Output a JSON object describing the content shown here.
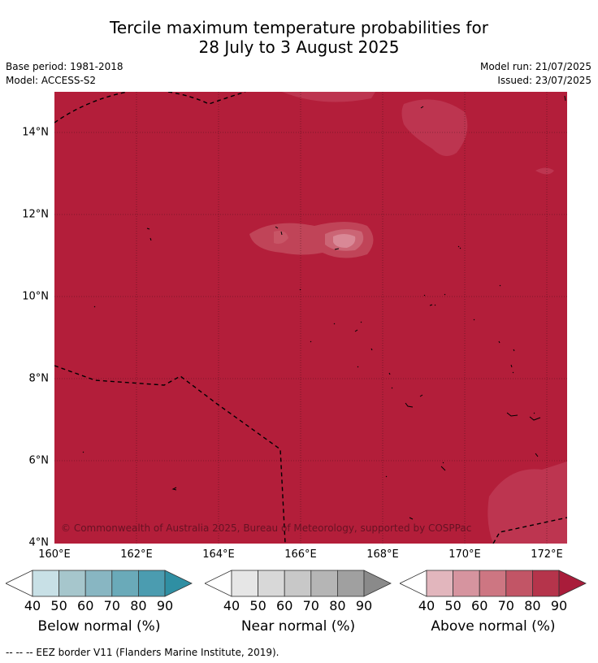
{
  "title_line1": "Tercile maximum temperature probabilities for",
  "title_line2": "28 July to 3 August 2025",
  "base_period": "Base period: 1981-2018",
  "model": "Model: ACCESS-S2",
  "model_run": "Model run: 21/07/2025",
  "issued": "Issued: 23/07/2025",
  "copyright": "© Commonwealth of Australia 2025, Bureau of Meteorology, supported by COSPPac",
  "map": {
    "lon_range": [
      160,
      172.5
    ],
    "lat_range": [
      4,
      15
    ],
    "lat_labels": [
      "4°N",
      "6°N",
      "8°N",
      "10°N",
      "12°N",
      "14°N"
    ],
    "lon_labels": [
      "160°E",
      "162°E",
      "164°E",
      "166°E",
      "168°E",
      "170°E",
      "172°E"
    ],
    "dominant_category": "Above normal",
    "dominant_range": "80-90",
    "fill_color": "#b31e3a"
  },
  "colorbars": [
    {
      "label": "Below normal (%)",
      "ticks": [
        "40",
        "50",
        "60",
        "70",
        "80",
        "90"
      ],
      "colors": [
        "#c8e0e6",
        "#a6c6cc",
        "#88b6c2",
        "#6aaab9",
        "#4b9cb0",
        "#2f8fa3"
      ]
    },
    {
      "label": "Near normal (%)",
      "ticks": [
        "40",
        "50",
        "60",
        "70",
        "80",
        "90"
      ],
      "colors": [
        "#e6e6e6",
        "#d8d8d8",
        "#c8c8c8",
        "#b5b5b5",
        "#a0a0a0",
        "#8a8a8a"
      ]
    },
    {
      "label": "Above normal (%)",
      "ticks": [
        "40",
        "50",
        "60",
        "70",
        "80",
        "90"
      ],
      "colors": [
        "#e2b6bd",
        "#d6949f",
        "#cd7682",
        "#c25566",
        "#b5344b",
        "#a91c3a"
      ]
    }
  ],
  "footnote": "--  --  -- EEZ border V11 (Flanders Marine Institute, 2019)."
}
